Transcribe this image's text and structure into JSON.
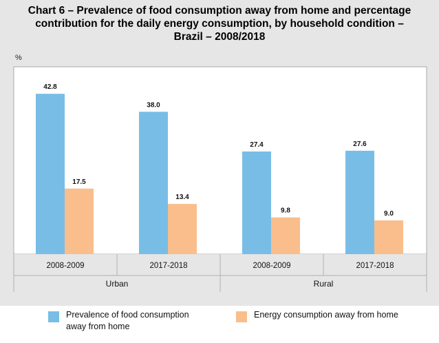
{
  "title_lines": [
    "Chart 6 – Prevalence of food consumption away from home and percentage",
    "contribution for the daily energy consumption, by household condition –",
    "Brazil – 2008/2018"
  ],
  "chart_data": {
    "type": "bar",
    "title": "Chart 6 – Prevalence of food consumption away from home and percentage contribution for the daily energy consumption, by household condition – Brazil – 2008/2018",
    "ylabel": "%",
    "ylim": [
      0,
      50
    ],
    "grid": false,
    "legend_position": "bottom",
    "groups": [
      {
        "name": "Urban",
        "categories": [
          "2008-2009",
          "2017-2018"
        ]
      },
      {
        "name": "Rural",
        "categories": [
          "2008-2009",
          "2017-2018"
        ]
      }
    ],
    "categories": [
      "2008-2009",
      "2017-2018",
      "2008-2009",
      "2017-2018"
    ],
    "series": [
      {
        "name": "Prevalence of food consumption away from home",
        "values": [
          42.8,
          38.0,
          27.4,
          27.6
        ],
        "labels": [
          "42.8",
          "38.0",
          "27.4",
          "27.6"
        ],
        "color": "#78bde6"
      },
      {
        "name": "Energy consumption away from home",
        "values": [
          17.5,
          13.4,
          9.8,
          9.0
        ],
        "labels": [
          "17.5",
          "13.4",
          "9.8",
          "9.0"
        ],
        "color": "#f9be8c"
      }
    ]
  }
}
